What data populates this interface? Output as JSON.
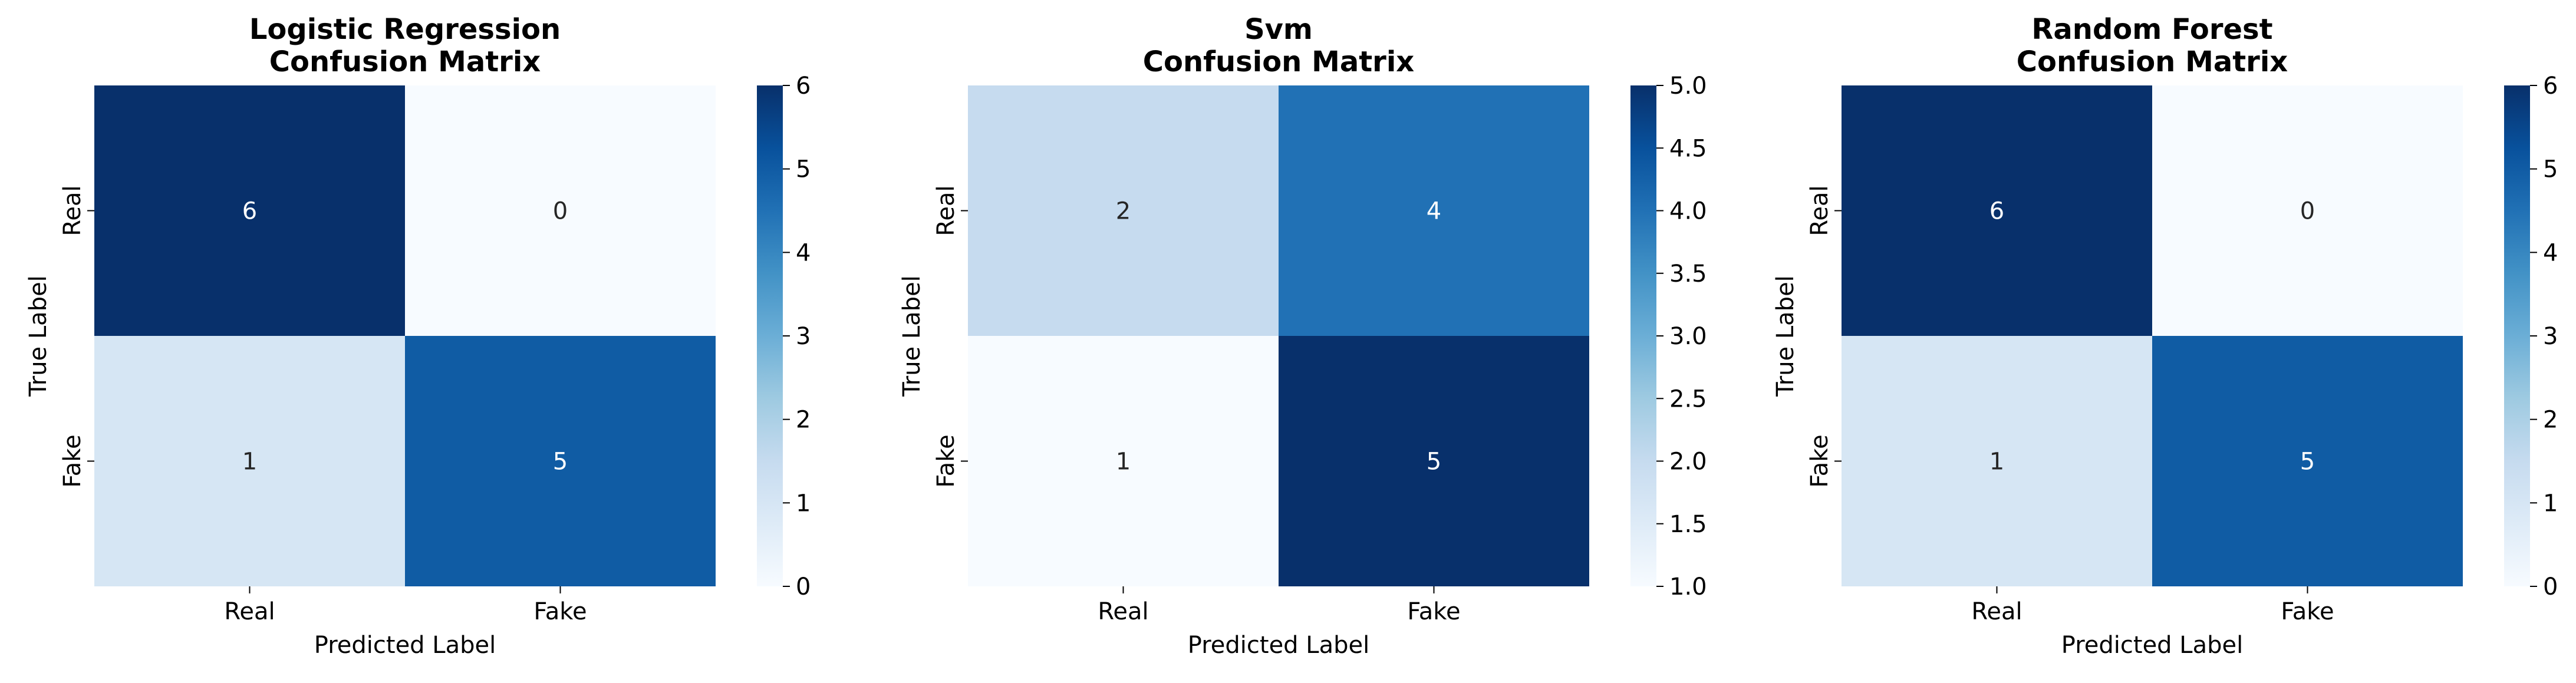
{
  "chart_data": [
    {
      "type": "heatmap",
      "title": [
        "Logistic Regression",
        "Confusion Matrix"
      ],
      "xlabel": "Predicted Label",
      "ylabel": "True Label",
      "x_categories": [
        "Real",
        "Fake"
      ],
      "y_categories": [
        "Real",
        "Fake"
      ],
      "values": [
        [
          6,
          0
        ],
        [
          1,
          5
        ]
      ],
      "colormap": "Blues",
      "vmin": 0,
      "vmax": 6,
      "colorbar_ticks": [
        "0",
        "1",
        "2",
        "3",
        "4",
        "5",
        "6"
      ]
    },
    {
      "type": "heatmap",
      "title": [
        "Svm",
        "Confusion Matrix"
      ],
      "xlabel": "Predicted Label",
      "ylabel": "True Label",
      "x_categories": [
        "Real",
        "Fake"
      ],
      "y_categories": [
        "Real",
        "Fake"
      ],
      "values": [
        [
          2,
          4
        ],
        [
          1,
          5
        ]
      ],
      "colormap": "Blues",
      "vmin": 1,
      "vmax": 5,
      "colorbar_ticks": [
        "1.0",
        "1.5",
        "2.0",
        "2.5",
        "3.0",
        "3.5",
        "4.0",
        "4.5",
        "5.0"
      ]
    },
    {
      "type": "heatmap",
      "title": [
        "Random Forest",
        "Confusion Matrix"
      ],
      "xlabel": "Predicted Label",
      "ylabel": "True Label",
      "x_categories": [
        "Real",
        "Fake"
      ],
      "y_categories": [
        "Real",
        "Fake"
      ],
      "values": [
        [
          6,
          0
        ],
        [
          1,
          5
        ]
      ],
      "colormap": "Blues",
      "vmin": 0,
      "vmax": 6,
      "colorbar_ticks": [
        "0",
        "1",
        "2",
        "3",
        "4",
        "5",
        "6"
      ]
    }
  ]
}
